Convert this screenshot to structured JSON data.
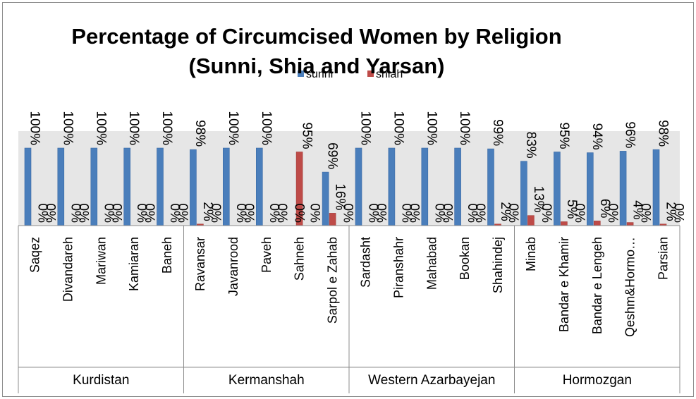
{
  "chart_data": {
    "type": "bar",
    "title": [
      "Percentage of Circumcised Women by Religion",
      "(Sunni, Shia and Yarsan)"
    ],
    "legend_position": "top",
    "ylim": [
      0,
      1.2
    ],
    "grid": false,
    "series": [
      {
        "name": "sunni",
        "color": "#4a7ebb",
        "values": [
          1.0,
          1.0,
          1.0,
          1.0,
          1.0,
          0.98,
          1.0,
          1.0,
          0,
          0.69,
          1.0,
          1.0,
          1.0,
          1.0,
          0.99,
          0.83,
          0.95,
          0.94,
          0.96,
          0.98
        ],
        "labels": [
          "100%",
          "100%",
          "100%",
          "100%",
          "100%",
          "98%",
          "100%",
          "100%",
          "0%",
          "69%",
          "100%",
          "100%",
          "100%",
          "100%",
          "99%",
          "83%",
          "95%",
          "94%",
          "96%",
          "98%"
        ]
      },
      {
        "name": "shiah",
        "color": "#be4b48",
        "values": [
          0,
          0,
          0,
          0,
          0,
          0.02,
          0,
          0,
          0.95,
          0.16,
          0,
          0,
          0,
          0,
          0.02,
          0.13,
          0.05,
          0.06,
          0.04,
          0.02
        ],
        "labels": [
          "0%",
          "0%",
          "0%",
          "0%",
          "0%",
          "2%",
          "0%",
          "0%",
          "95%",
          "16%",
          "0%",
          "0%",
          "0%",
          "0%",
          "2%",
          "13%",
          "5%",
          "6%",
          "4%",
          "2%"
        ]
      },
      {
        "name": "",
        "color": "#98b954",
        "values": [
          0,
          0,
          0,
          0,
          0,
          0,
          0,
          0,
          0,
          0,
          0,
          0,
          0,
          0,
          0,
          0,
          0,
          0,
          0,
          0
        ],
        "labels": [
          "0%",
          "0%",
          "0%",
          "0%",
          "0%",
          "0%",
          "0%",
          "0%",
          "0%",
          "0%",
          "0%",
          "0%",
          "0%",
          "0%",
          "0%",
          "0%",
          "0%",
          "0%",
          "0%",
          "0%"
        ]
      }
    ],
    "categories": [
      "Saqez",
      "Divandareh",
      "Mariwan",
      "Kamiaran",
      "Baneh",
      "Ravansar",
      "Javanrood",
      "Paveh",
      "Sahneh",
      "Sarpol e Zahab",
      "Sardasht",
      "Piranshahr",
      "Mahabad",
      "Bookan",
      "Shahindej",
      "Minab",
      "Bandar e Khamir",
      "Bandar e Lengeh",
      "Qeshm&Hormo…",
      "Parsian"
    ],
    "groups": [
      {
        "name": "Kurdistan",
        "count": 5
      },
      {
        "name": "Kermanshah",
        "count": 5
      },
      {
        "name": "Western Azarbayejan",
        "count": 5
      },
      {
        "name": "Hormozgan",
        "count": 5
      }
    ],
    "colors": {
      "plot_band": "#e6e6e6",
      "axis": "#8c8c8c"
    }
  }
}
